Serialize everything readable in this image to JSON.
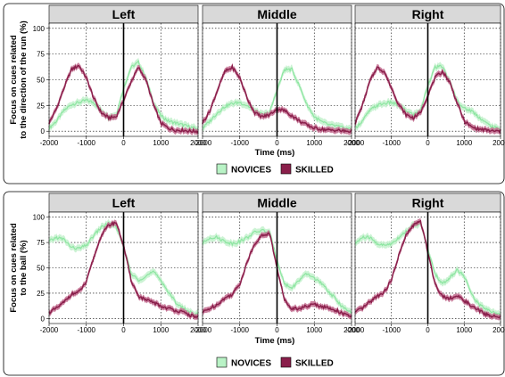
{
  "colors": {
    "novices_line": "#8ee6a2",
    "novices_band": "#c6f2cf",
    "skilled_line": "#8a1f4b",
    "skilled_band": "#c26b8e",
    "strip_bg": "#d9d9d9",
    "legend_novices": "#b9f3c6",
    "legend_skilled": "#8a1f4b"
  },
  "chart_data": [
    {
      "type": "line",
      "ylabel": "Focus on cues related to the direction of the run (%)",
      "ylabel_lines": [
        "Focus on cues related",
        "to the direction of the run (%)"
      ],
      "xlabel": "Time (ms)",
      "xlim": [
        -2000,
        2000
      ],
      "ylim": [
        -5,
        105
      ],
      "xticks": [
        -2000,
        -1000,
        0,
        1000,
        2000
      ],
      "yticks": [
        0,
        25,
        50,
        75,
        100
      ],
      "xtick_labels": [
        "-2000",
        "-1000",
        "0",
        "1000",
        "2000"
      ],
      "ytick_labels": [
        "0",
        "25",
        "50",
        "75",
        "100"
      ],
      "grid": true,
      "legend_position": "bottom",
      "legend": [
        "NOVICES",
        "SKILLED"
      ],
      "panels": [
        {
          "title": "Left",
          "series": [
            {
              "name": "NOVICES",
              "x": [
                -2000,
                -1800,
                -1600,
                -1400,
                -1200,
                -1000,
                -800,
                -600,
                -400,
                -200,
                0,
                200,
                400,
                600,
                800,
                1000,
                1200,
                1400,
                1600,
                1800,
                2000
              ],
              "y": [
                3,
                10,
                20,
                26,
                28,
                30,
                28,
                20,
                14,
                16,
                42,
                62,
                67,
                52,
                28,
                15,
                10,
                8,
                6,
                4,
                2
              ]
            },
            {
              "name": "SKILLED",
              "x": [
                -2000,
                -1800,
                -1600,
                -1400,
                -1200,
                -1000,
                -800,
                -600,
                -400,
                -200,
                0,
                200,
                400,
                600,
                800,
                1000,
                1200,
                1400,
                1600,
                1800,
                2000
              ],
              "y": [
                8,
                22,
                42,
                60,
                64,
                52,
                32,
                18,
                13,
                14,
                30,
                48,
                62,
                50,
                26,
                8,
                3,
                1,
                1,
                0,
                0
              ]
            }
          ]
        },
        {
          "title": "Middle",
          "series": [
            {
              "name": "NOVICES",
              "x": [
                -2000,
                -1800,
                -1600,
                -1400,
                -1200,
                -1000,
                -800,
                -600,
                -400,
                -200,
                0,
                200,
                400,
                600,
                800,
                1000,
                1200,
                1400,
                1600,
                1800,
                2000
              ],
              "y": [
                3,
                10,
                18,
                24,
                27,
                28,
                25,
                20,
                16,
                18,
                40,
                60,
                60,
                44,
                26,
                14,
                9,
                6,
                5,
                3,
                2
              ]
            },
            {
              "name": "SKILLED",
              "x": [
                -2000,
                -1800,
                -1600,
                -1400,
                -1200,
                -1000,
                -800,
                -600,
                -400,
                -200,
                0,
                200,
                400,
                600,
                800,
                1000,
                1200,
                1400,
                1600,
                1800,
                2000
              ],
              "y": [
                8,
                20,
                40,
                58,
                62,
                52,
                32,
                18,
                14,
                16,
                22,
                20,
                15,
                10,
                6,
                3,
                2,
                1,
                1,
                0,
                0
              ]
            }
          ]
        },
        {
          "title": "Right",
          "series": [
            {
              "name": "NOVICES",
              "x": [
                -2000,
                -1800,
                -1600,
                -1400,
                -1200,
                -1000,
                -800,
                -600,
                -400,
                -200,
                0,
                200,
                400,
                600,
                800,
                1000,
                1200,
                1400,
                1600,
                1800,
                2000
              ],
              "y": [
                3,
                10,
                20,
                25,
                27,
                28,
                25,
                20,
                16,
                20,
                45,
                62,
                63,
                48,
                30,
                22,
                20,
                14,
                8,
                4,
                2
              ]
            },
            {
              "name": "SKILLED",
              "x": [
                -2000,
                -1800,
                -1600,
                -1400,
                -1200,
                -1000,
                -800,
                -600,
                -400,
                -200,
                0,
                200,
                400,
                600,
                800,
                1000,
                1200,
                1400,
                1600,
                1800,
                2000
              ],
              "y": [
                8,
                25,
                48,
                62,
                58,
                42,
                26,
                16,
                13,
                18,
                35,
                52,
                58,
                48,
                28,
                10,
                4,
                2,
                1,
                0,
                0
              ]
            }
          ]
        }
      ]
    },
    {
      "type": "line",
      "ylabel": "Focus on cues related to the ball (%)",
      "ylabel_lines": [
        "Focus on cues related",
        "to the ball (%)"
      ],
      "xlabel": "Time (ms)",
      "xlim": [
        -2000,
        2000
      ],
      "ylim": [
        -5,
        105
      ],
      "xticks": [
        -2000,
        -1000,
        0,
        1000,
        2000
      ],
      "yticks": [
        0,
        25,
        50,
        75,
        100
      ],
      "xtick_labels": [
        "-2000",
        "-1000",
        "0",
        "1000",
        "2000"
      ],
      "ytick_labels": [
        "0",
        "25",
        "50",
        "75",
        "100"
      ],
      "grid": true,
      "legend_position": "bottom",
      "legend": [
        "NOVICES",
        "SKILLED"
      ],
      "panels": [
        {
          "title": "Left",
          "series": [
            {
              "name": "NOVICES",
              "x": [
                -2000,
                -1800,
                -1600,
                -1400,
                -1200,
                -1000,
                -800,
                -600,
                -400,
                -200,
                0,
                200,
                400,
                600,
                800,
                1000,
                1200,
                1400,
                1600,
                1800,
                2000
              ],
              "y": [
                76,
                80,
                78,
                70,
                69,
                72,
                82,
                90,
                94,
                90,
                72,
                44,
                38,
                42,
                46,
                38,
                26,
                16,
                10,
                6,
                4
              ]
            },
            {
              "name": "SKILLED",
              "x": [
                -2000,
                -1800,
                -1600,
                -1400,
                -1200,
                -1000,
                -800,
                -600,
                -400,
                -200,
                0,
                200,
                400,
                600,
                800,
                1000,
                1200,
                1400,
                1600,
                1800,
                2000
              ],
              "y": [
                6,
                10,
                16,
                24,
                26,
                36,
                60,
                82,
                92,
                95,
                72,
                38,
                22,
                18,
                16,
                12,
                10,
                8,
                6,
                3,
                1
              ]
            }
          ]
        },
        {
          "title": "Middle",
          "series": [
            {
              "name": "NOVICES",
              "x": [
                -2000,
                -1800,
                -1600,
                -1400,
                -1200,
                -1000,
                -800,
                -600,
                -400,
                -200,
                0,
                200,
                400,
                600,
                800,
                1000,
                1200,
                1400,
                1600,
                1800,
                2000
              ],
              "y": [
                74,
                80,
                80,
                76,
                74,
                76,
                80,
                85,
                87,
                85,
                58,
                34,
                30,
                38,
                44,
                40,
                34,
                26,
                18,
                10,
                5
              ]
            },
            {
              "name": "SKILLED",
              "x": [
                -2000,
                -1800,
                -1600,
                -1400,
                -1200,
                -1000,
                -800,
                -600,
                -400,
                -200,
                0,
                200,
                400,
                600,
                800,
                1000,
                1200,
                1400,
                1600,
                1800,
                2000
              ],
              "y": [
                6,
                10,
                14,
                20,
                24,
                34,
                56,
                74,
                82,
                84,
                50,
                18,
                10,
                10,
                12,
                14,
                12,
                10,
                8,
                4,
                2
              ]
            }
          ]
        },
        {
          "title": "Right",
          "series": [
            {
              "name": "NOVICES",
              "x": [
                -2000,
                -1800,
                -1600,
                -1400,
                -1200,
                -1000,
                -800,
                -600,
                -400,
                -200,
                0,
                200,
                400,
                600,
                800,
                1000,
                1200,
                1400,
                1600,
                1800,
                2000
              ],
              "y": [
                74,
                80,
                80,
                74,
                72,
                74,
                80,
                86,
                92,
                94,
                68,
                44,
                34,
                40,
                48,
                42,
                24,
                14,
                10,
                6,
                4
              ]
            },
            {
              "name": "SKILLED",
              "x": [
                -2000,
                -1800,
                -1600,
                -1400,
                -1200,
                -1000,
                -800,
                -600,
                -400,
                -200,
                0,
                200,
                400,
                600,
                800,
                1000,
                1200,
                1400,
                1600,
                1800,
                2000
              ],
              "y": [
                6,
                10,
                16,
                22,
                26,
                38,
                62,
                82,
                92,
                96,
                66,
                34,
                22,
                20,
                22,
                18,
                12,
                8,
                4,
                2,
                1
              ]
            }
          ]
        }
      ]
    }
  ]
}
